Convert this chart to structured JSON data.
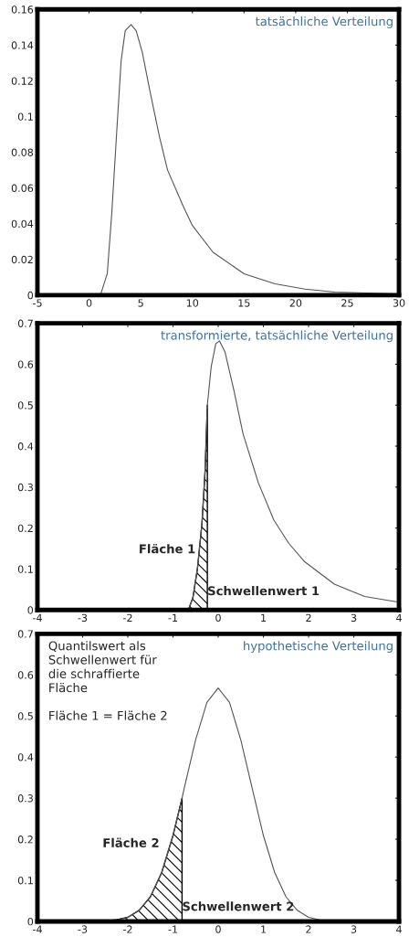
{
  "chart_data": [
    {
      "type": "line",
      "title": "tatsächliche Verteilung",
      "xlim": [
        -5,
        30
      ],
      "ylim": [
        0,
        0.16
      ],
      "xticks": [
        -5,
        0,
        5,
        10,
        15,
        20,
        25,
        30
      ],
      "yticks": [
        0,
        0.02,
        0.04,
        0.06,
        0.08,
        0.1,
        0.12,
        0.14,
        0.16
      ],
      "grid": false,
      "series": [
        {
          "color": "#555555",
          "x": [
            -5,
            1.1,
            1.76,
            2.2,
            2.65,
            3.1,
            3.5,
            4.06,
            4.56,
            5.15,
            5.9,
            6.8,
            7.6,
            9.1,
            10,
            12,
            15,
            18,
            20.9,
            23.8,
            30
          ],
          "values": [
            0,
            0,
            0.012,
            0.046,
            0.089,
            0.131,
            0.148,
            0.1515,
            0.148,
            0.136,
            0.114,
            0.089,
            0.07,
            0.05,
            0.039,
            0.024,
            0.012,
            0.0063,
            0.0034,
            0.0017,
            0.0007
          ]
        }
      ]
    },
    {
      "type": "line",
      "title": "transformierte, tatsächliche Verteilung",
      "xlim": [
        -4,
        4
      ],
      "ylim": [
        0,
        0.7
      ],
      "xticks": [
        -4,
        -3,
        -2,
        -1,
        0,
        1,
        2,
        3,
        4
      ],
      "yticks": [
        0,
        0.1,
        0.2,
        0.3,
        0.4,
        0.5,
        0.6,
        0.7
      ],
      "grid": false,
      "series": [
        {
          "color": "#555555",
          "x": [
            -4,
            -0.66,
            -0.56,
            -0.46,
            -0.36,
            -0.29,
            -0.24,
            -0.155,
            -0.054,
            0.03,
            0.15,
            0.35,
            0.55,
            0.89,
            1.23,
            1.56,
            1.9,
            2.57,
            3.24,
            4
          ],
          "values": [
            0,
            0,
            0.03,
            0.1,
            0.21,
            0.34,
            0.5,
            0.594,
            0.65,
            0.657,
            0.63,
            0.535,
            0.43,
            0.31,
            0.22,
            0.163,
            0.119,
            0.063,
            0.033,
            0.019
          ]
        },
        {
          "type": "area",
          "color": "#000000",
          "x": [
            -0.66,
            -0.56,
            -0.46,
            -0.36,
            -0.29,
            -0.24
          ],
          "values": [
            0,
            0.03,
            0.1,
            0.21,
            0.34,
            0.5
          ]
        }
      ],
      "annotations": [
        "Fläche 1",
        {
          "text": "Schwellenwert 1",
          "x": -0.24,
          "y": 0.03
        }
      ]
    },
    {
      "type": "line",
      "title": "hypothetische Verteilung",
      "xlim": [
        -4,
        4
      ],
      "ylim": [
        0,
        0.7
      ],
      "xticks": [
        -4,
        -3,
        -2,
        -1,
        0,
        1,
        2,
        3,
        4
      ],
      "yticks": [
        0,
        0.1,
        0.2,
        0.3,
        0.4,
        0.5,
        0.6,
        0.7
      ],
      "grid": false,
      "series": [
        {
          "color": "#555555",
          "x": [
            -4,
            -2.5,
            -2.25,
            -2,
            -1.75,
            -1.5,
            -1.25,
            -1,
            -0.8,
            -0.75,
            -0.5,
            -0.25,
            0,
            0.25,
            0.5,
            0.75,
            1,
            1.25,
            1.5,
            1.75,
            2,
            2.25,
            2.5,
            4
          ],
          "values": [
            0,
            0.001,
            0.004,
            0.01,
            0.027,
            0.06,
            0.119,
            0.209,
            0.3,
            0.325,
            0.442,
            0.533,
            0.568,
            0.533,
            0.442,
            0.325,
            0.209,
            0.119,
            0.06,
            0.027,
            0.01,
            0.004,
            0.001,
            0
          ]
        },
        {
          "type": "area",
          "color": "#000000",
          "x": [
            -2.5,
            -2.25,
            -2,
            -1.75,
            -1.5,
            -1.25,
            -1,
            -0.8
          ],
          "values": [
            0.001,
            0.004,
            0.01,
            0.027,
            0.06,
            0.119,
            0.209,
            0.3
          ]
        }
      ],
      "annotations": [
        "Quantilswert als\nSchwellenwert für\ndie schraffierte\nFläche\n\nFläche 1 = Fläche 2",
        "Fläche 2",
        {
          "text": "Schwellenwert 2",
          "x": -0.8,
          "y": 0.02
        }
      ]
    }
  ]
}
